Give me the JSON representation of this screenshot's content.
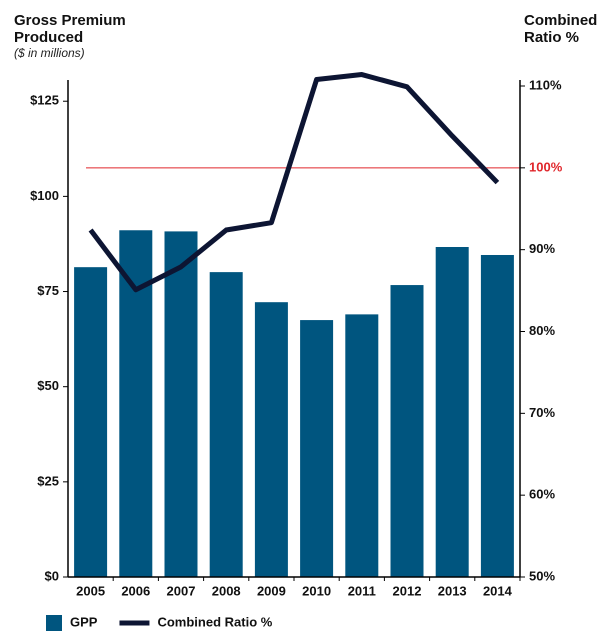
{
  "chart_data": {
    "type": "bar_line",
    "title": "Gross Premium Produced",
    "subtitle": "($ in millions)",
    "y2_title": "Combined Ratio %",
    "categories": [
      "2005",
      "2006",
      "2007",
      "2008",
      "2009",
      "2010",
      "2011",
      "2012",
      "2013",
      "2014"
    ],
    "series": [
      {
        "name": "GPP",
        "type": "bar",
        "color": "#00557f",
        "values": [
          81.4,
          91.1,
          90.8,
          80.1,
          72.2,
          67.5,
          69,
          76.7,
          86.7,
          84.6
        ]
      },
      {
        "name": "Combined Ratio %",
        "type": "line",
        "axis": "y2",
        "color": "#0d1533",
        "values": [
          92.4,
          85.1,
          87.9,
          92.4,
          93.3,
          110.8,
          111.4,
          109.9,
          103.9,
          98.2
        ]
      }
    ],
    "ylim": [
      0,
      129
    ],
    "yticks": [
      {
        "value": 0,
        "label": "$0"
      },
      {
        "value": 25,
        "label": "$25"
      },
      {
        "value": 50,
        "label": "$50"
      },
      {
        "value": 75,
        "label": "$75"
      },
      {
        "value": 100,
        "label": "$100"
      },
      {
        "value": 125,
        "label": "$125"
      }
    ],
    "y2lim": [
      50,
      110
    ],
    "y2ticks": [
      {
        "value": 50,
        "label": "50%"
      },
      {
        "value": 60,
        "label": "60%"
      },
      {
        "value": 70,
        "label": "70%"
      },
      {
        "value": 80,
        "label": "80%"
      },
      {
        "value": 90,
        "label": "90%"
      },
      {
        "value": 100,
        "label": "100%"
      },
      {
        "value": 110,
        "label": "110%"
      }
    ],
    "reference_line": {
      "value": 100,
      "axis": "y2",
      "color": "#e0262b"
    },
    "legend": "bottom-left"
  }
}
